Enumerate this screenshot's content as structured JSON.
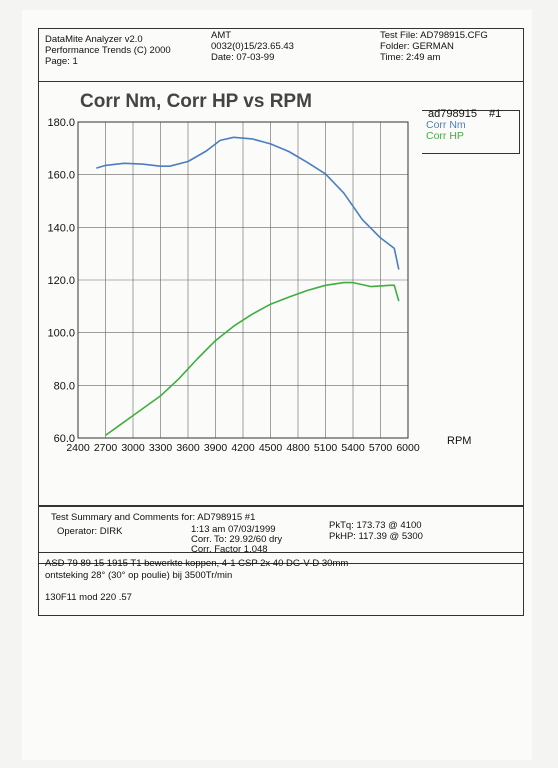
{
  "header": {
    "app_line": "DataMite Analyzer v2.0",
    "company_line": "Performance Trends (C) 2000",
    "page_line": "Page:  1",
    "amt_label": "AMT",
    "code_line": "0032(0)15/23.65.43",
    "date_line": "Date: 07-03-99",
    "test_file_line": "Test File: AD798915.CFG",
    "folder_line": "Folder: GERMAN",
    "time_line": "Time: 2:49 am"
  },
  "chart_data": {
    "type": "line",
    "title": "Corr Nm, Corr HP vs RPM",
    "xlabel": "RPM",
    "ylabel": "",
    "xlim": [
      2400,
      6000
    ],
    "ylim": [
      60,
      180
    ],
    "xticks": [
      2400,
      2700,
      3000,
      3300,
      3600,
      3900,
      4200,
      4500,
      4800,
      5100,
      5400,
      5700,
      6000
    ],
    "yticks": [
      "60.0",
      "80.0",
      "100.0",
      "120.0",
      "140.0",
      "160.0",
      "180.0"
    ],
    "grid": true,
    "legend_title": "ad798915",
    "legend_run": "#1",
    "legend_position": "right",
    "series": [
      {
        "name": "Corr Nm",
        "color": "#4a7fc1",
        "x": [
          2600,
          2700,
          2900,
          3100,
          3300,
          3400,
          3600,
          3800,
          3950,
          4100,
          4300,
          4500,
          4700,
          4900,
          5100,
          5300,
          5500,
          5700,
          5850,
          5900
        ],
        "values": [
          162.5,
          163.5,
          164.3,
          164.0,
          163.2,
          163.2,
          165.0,
          169.0,
          173.0,
          174.2,
          173.6,
          171.7,
          168.8,
          164.7,
          160.3,
          153.0,
          143.0,
          136.0,
          132.0,
          124.0
        ]
      },
      {
        "name": "Corr HP",
        "color": "#3fae3f",
        "x": [
          2700,
          2900,
          3100,
          3300,
          3500,
          3700,
          3900,
          4100,
          4300,
          4500,
          4700,
          4900,
          5100,
          5300,
          5400,
          5600,
          5800,
          5850,
          5900
        ],
        "values": [
          61.0,
          66.0,
          71.0,
          76.0,
          82.5,
          90.0,
          97.0,
          102.5,
          107.0,
          110.8,
          113.5,
          116.0,
          118.0,
          119.0,
          119.0,
          117.5,
          118.0,
          118.0,
          112.0
        ]
      }
    ]
  },
  "summary": {
    "heading": "Test Summary and Comments for:   AD798915   #1",
    "operator": "Operator: DIRK",
    "time_date": "1:13 am 07/03/1999",
    "corr_to": "Corr. To: 29.92/60 dry",
    "corr_factor": "Corr. Factor 1.048",
    "pk_tq": "PkTq: 173.73 @  4100",
    "pk_hp": "PkHP: 117.39 @  5300"
  },
  "comments": {
    "line1": "ASD 79 89 15  1915 T1 bewerkte koppen, 4-1 CSP 2x 40 DG-V-D  30mm",
    "line2": "ontsteking 28° (30° op poulie) bij 3500Tr/min",
    "line3": "130F11 mod 220 .57"
  }
}
